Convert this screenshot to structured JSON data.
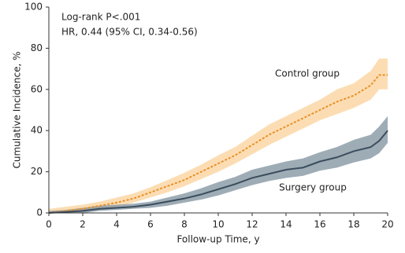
{
  "chart_data": {
    "type": "line",
    "annotations": [
      "Log-rank P<.001",
      "HR, 0.44 (95% CI, 0.34-0.56)"
    ],
    "xlabel": "Follow-up Time, y",
    "ylabel": "Cumulative Incidence, %",
    "x": [
      0,
      1,
      2,
      3,
      4,
      5,
      6,
      7,
      8,
      9,
      10,
      11,
      12,
      13,
      14,
      15,
      16,
      17,
      18,
      19,
      19.5,
      20
    ],
    "series": [
      {
        "name": "Control group",
        "color": "#e8902a",
        "band_color": "#fcd7a6",
        "dashed": true,
        "values": [
          0,
          1,
          2,
          3.5,
          5,
          7,
          10,
          13,
          16,
          20,
          24,
          28,
          33,
          38,
          42,
          46,
          50,
          54,
          57,
          62,
          67,
          67
        ],
        "lower": [
          0,
          0,
          1,
          2,
          3,
          5,
          7.5,
          10,
          13,
          16.5,
          20,
          24,
          28.5,
          33,
          37,
          41,
          45,
          48,
          51,
          55,
          60,
          60
        ],
        "upper": [
          2,
          3,
          4,
          5.5,
          7.5,
          9.5,
          12.5,
          16,
          19.5,
          23.5,
          28,
          32,
          37.5,
          43,
          47,
          51,
          55,
          60,
          63,
          69,
          75,
          75
        ]
      },
      {
        "name": "Surgery group",
        "color": "#3b4d5c",
        "band_color": "#8d9ea9",
        "dashed": false,
        "values": [
          0,
          0.5,
          1,
          2,
          2.5,
          3,
          4,
          5.5,
          7,
          9,
          11.5,
          14,
          17,
          19,
          21,
          22,
          25,
          27,
          30,
          32,
          35,
          40
        ],
        "lower": [
          0,
          0,
          0,
          1,
          1.5,
          2,
          2.5,
          3.5,
          5,
          6.5,
          8.5,
          11,
          13.5,
          15.5,
          17,
          18,
          20.5,
          22,
          24.5,
          26.5,
          29,
          34
        ],
        "upper": [
          1,
          1.5,
          2.5,
          3.5,
          4,
          4.5,
          5.5,
          7.5,
          9.5,
          12,
          15,
          17.5,
          21,
          23,
          25,
          26.5,
          29.5,
          32,
          35.5,
          38,
          42,
          47
        ]
      }
    ],
    "xlim": [
      0,
      20
    ],
    "xticks": [
      0,
      2,
      4,
      6,
      8,
      10,
      12,
      14,
      16,
      18,
      20
    ],
    "ylim": [
      0,
      100
    ],
    "yticks": [
      0,
      20,
      40,
      60,
      80,
      100
    ],
    "grid": false
  }
}
